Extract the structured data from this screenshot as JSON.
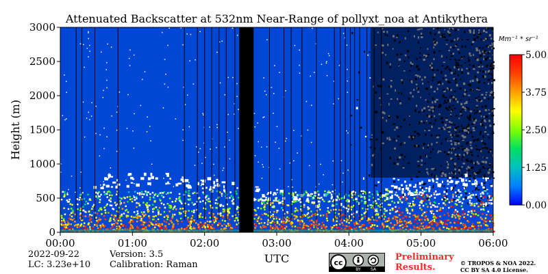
{
  "chart_data": {
    "type": "heatmap",
    "title": "Attenuated Backscatter at 532nm Near-Range of pollyxt_noa at Antikythera",
    "xlabel": "UTC",
    "ylabel": "Height (m)",
    "x_ticks": [
      "00:00",
      "01:00",
      "02:00",
      "03:00",
      "04:00",
      "05:00",
      "06:00"
    ],
    "y_ticks": [
      "0",
      "500",
      "1000",
      "1500",
      "2000",
      "2500",
      "3000"
    ],
    "xlim_hours": [
      0,
      6
    ],
    "ylim_m": [
      0,
      3000
    ],
    "colorbar": {
      "unit": "Mm⁻¹ * sr⁻¹",
      "ticks": [
        "0.00",
        "1.25",
        "2.50",
        "3.75",
        "5.00"
      ],
      "range": [
        0,
        5
      ],
      "colors": [
        "#0000ff",
        "#0080ff",
        "#00c0c0",
        "#00e060",
        "#80ff00",
        "#ffff00",
        "#ffa000",
        "#ff4000",
        "#ff0000"
      ]
    },
    "background_value_color": "#0047d6",
    "no_data_interval_hours": [
      2.48,
      2.68
    ],
    "aerosol_layer_top_m": 600,
    "noise_onset_hours": 4.0,
    "colors": {
      "low": "#0047d6",
      "noise": "#000000",
      "cloud": "#ffffff"
    }
  },
  "footer": {
    "date": "2022-09-22",
    "lc": "LC: 3.23e+10",
    "version": "Version: 3.5",
    "calibration": "Calibration: Raman",
    "prelim_line1": "Preliminary",
    "prelim_line2": "Results.",
    "copyright_line1": "© TROPOS & NOA 2022.",
    "copyright_line2": "CC BY SA 4.0 License.",
    "badge": {
      "cc": "cc",
      "by": "BY",
      "sa": "SA"
    }
  }
}
